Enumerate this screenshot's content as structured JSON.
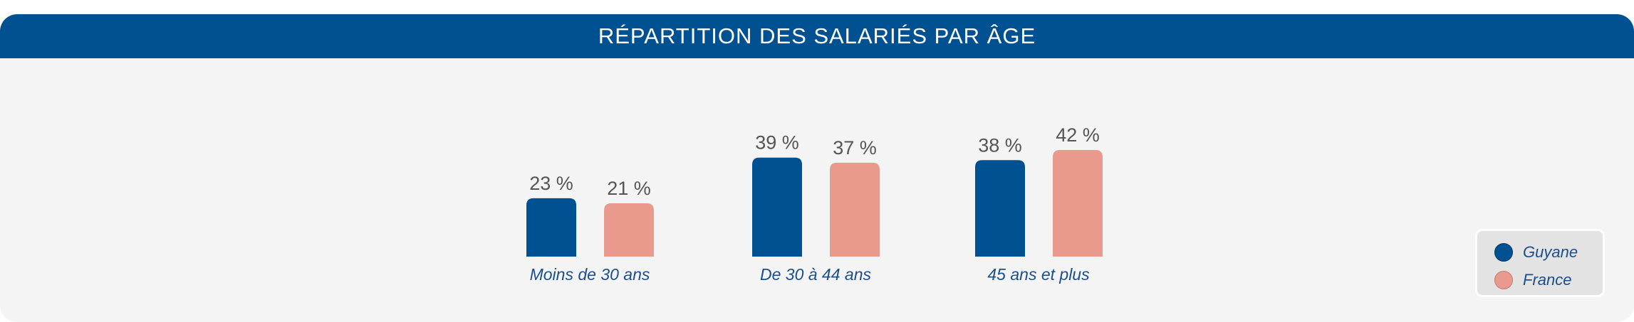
{
  "title": "RÉPARTITION DES SALARIÉS PAR ÂGE",
  "colors": {
    "header": "#005191",
    "guyane": "#005191",
    "france": "#e99a8d",
    "value_label": "#555555",
    "category_label": "#1b4f8a",
    "background": "#f4f4f4"
  },
  "legend": [
    {
      "name": "Guyane",
      "color": "#005191",
      "icon": "circle-marker"
    },
    {
      "name": "France",
      "color": "#e99a8d",
      "icon": "circle-marker"
    }
  ],
  "chart_data": {
    "type": "bar",
    "title": "RÉPARTITION DES SALARIÉS PAR ÂGE",
    "categories": [
      "Moins de 30 ans",
      "De 30 à 44 ans",
      "45 ans et plus"
    ],
    "series": [
      {
        "name": "Guyane",
        "values": [
          23,
          39,
          38
        ],
        "labels": [
          "23 %",
          "39 %",
          "38 %"
        ]
      },
      {
        "name": "France",
        "values": [
          21,
          37,
          42
        ],
        "labels": [
          "21 %",
          "37 %",
          "42 %"
        ]
      }
    ],
    "unit": "%",
    "xlabel": "",
    "ylabel": "",
    "ylim": [
      0,
      42
    ],
    "grid": false,
    "legend_position": "bottom-right"
  }
}
